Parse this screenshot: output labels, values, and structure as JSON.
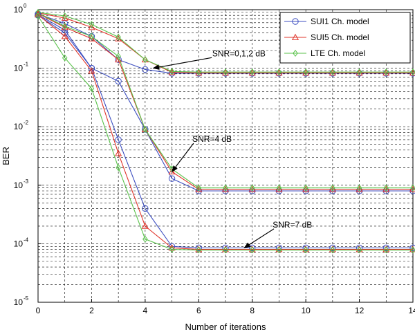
{
  "chart_data": {
    "type": "line",
    "xlabel": "Number of iterations",
    "ylabel": "BER",
    "xlim": [
      0,
      14
    ],
    "ylim": [
      1e-05,
      1
    ],
    "yscale": "log",
    "grid": true,
    "legend_position": "top-right",
    "x_ticks": [
      "0",
      "2",
      "4",
      "6",
      "8",
      "10",
      "12",
      "14"
    ],
    "y_ticks": [
      {
        "base": "10",
        "exp": "0"
      },
      {
        "base": "10",
        "exp": "-1"
      },
      {
        "base": "10",
        "exp": "-2"
      },
      {
        "base": "10",
        "exp": "-3"
      },
      {
        "base": "10",
        "exp": "-4"
      },
      {
        "base": "10",
        "exp": "-5"
      }
    ],
    "x": [
      0,
      1,
      2,
      3,
      4,
      5,
      6,
      7,
      8,
      9,
      10,
      11,
      12,
      13,
      14
    ],
    "series": [
      {
        "name": "SUI1 Ch. model",
        "color": "#3c4ec0",
        "marker": "circle",
        "snr": "0,1,2 dB",
        "values": [
          0.85,
          0.58,
          0.35,
          0.14,
          0.095,
          0.082,
          0.082,
          0.082,
          0.082,
          0.082,
          0.082,
          0.082,
          0.082,
          0.082,
          0.082
        ]
      },
      {
        "name": "SUI5 Ch. model",
        "color": "#e0352b",
        "marker": "triangle",
        "snr": "0,1,2 dB",
        "values": [
          0.88,
          0.72,
          0.5,
          0.32,
          0.14,
          0.085,
          0.083,
          0.083,
          0.083,
          0.083,
          0.083,
          0.083,
          0.083,
          0.083,
          0.083
        ]
      },
      {
        "name": "LTE Ch. model",
        "color": "#59c24a",
        "marker": "diamond",
        "snr": "0,1,2 dB",
        "values": [
          0.9,
          0.78,
          0.56,
          0.34,
          0.14,
          0.088,
          0.086,
          0.086,
          0.086,
          0.086,
          0.086,
          0.086,
          0.086,
          0.086,
          0.086
        ]
      },
      {
        "name": "SUI1 Ch. model",
        "color": "#3c4ec0",
        "marker": "circle",
        "snr": "4 dB",
        "values": [
          0.82,
          0.45,
          0.1,
          0.06,
          0.009,
          0.0013,
          0.0008,
          0.0008,
          0.0008,
          0.0008,
          0.0008,
          0.0008,
          0.0008,
          0.0008,
          0.0008
        ]
      },
      {
        "name": "SUI5 Ch. model",
        "color": "#e0352b",
        "marker": "triangle",
        "snr": "4 dB",
        "values": [
          0.86,
          0.5,
          0.32,
          0.14,
          0.009,
          0.0017,
          0.00085,
          0.00085,
          0.00085,
          0.00085,
          0.00085,
          0.00085,
          0.00085,
          0.00085,
          0.00085
        ]
      },
      {
        "name": "LTE Ch. model",
        "color": "#59c24a",
        "marker": "diamond",
        "snr": "4 dB",
        "values": [
          0.88,
          0.52,
          0.35,
          0.16,
          0.009,
          0.0019,
          0.0009,
          0.0009,
          0.0009,
          0.0009,
          0.0009,
          0.0009,
          0.0009,
          0.0009,
          0.0009
        ]
      },
      {
        "name": "SUI1 Ch. model",
        "color": "#3c4ec0",
        "marker": "circle",
        "snr": "7 dB",
        "values": [
          0.8,
          0.4,
          0.1,
          0.006,
          0.0004,
          9e-05,
          8.5e-05,
          8.5e-05,
          8.5e-05,
          8.5e-05,
          8.5e-05,
          8.5e-05,
          8.5e-05,
          8.5e-05,
          8.5e-05
        ]
      },
      {
        "name": "SUI5 Ch. model",
        "color": "#e0352b",
        "marker": "triangle",
        "snr": "7 dB",
        "values": [
          0.82,
          0.35,
          0.09,
          0.0035,
          0.0002,
          8.5e-05,
          8e-05,
          8e-05,
          8e-05,
          8e-05,
          8e-05,
          8e-05,
          8e-05,
          8e-05,
          8e-05
        ]
      },
      {
        "name": "LTE Ch. model",
        "color": "#59c24a",
        "marker": "diamond",
        "snr": "7 dB",
        "values": [
          0.78,
          0.15,
          0.045,
          0.002,
          0.00012,
          8e-05,
          7.8e-05,
          7.8e-05,
          7.8e-05,
          7.8e-05,
          7.8e-05,
          7.8e-05,
          7.8e-05,
          7.8e-05,
          7.8e-05
        ]
      }
    ],
    "legend": [
      {
        "label": "SUI1 Ch. model",
        "color": "#3c4ec0",
        "marker": "circle"
      },
      {
        "label": "SUI5 Ch. model",
        "color": "#e0352b",
        "marker": "triangle"
      },
      {
        "label": "LTE Ch. model",
        "color": "#59c24a",
        "marker": "diamond"
      }
    ],
    "annotations": [
      {
        "text": "SNR=0,1,2 dB",
        "text_x": 7.5,
        "text_y": 0.16,
        "arrow_to_x": 4.3,
        "arrow_to_y": 0.1
      },
      {
        "text": "SNR=4 dB",
        "text_x": 6.5,
        "text_y": 0.0055,
        "arrow_to_x": 5.0,
        "arrow_to_y": 0.0017
      },
      {
        "text": "SNR=7 dB",
        "text_x": 9.5,
        "text_y": 0.00019,
        "arrow_to_x": 7.7,
        "arrow_to_y": 8.5e-05
      }
    ]
  }
}
